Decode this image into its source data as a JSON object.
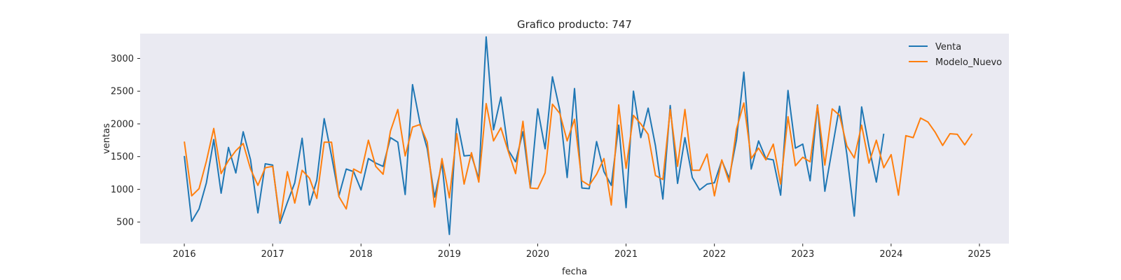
{
  "chart_data": {
    "type": "line",
    "title": "Grafico producto: 747",
    "xlabel": "fecha",
    "ylabel": "ventas",
    "x_ticks": [
      "2016",
      "2017",
      "2018",
      "2019",
      "2020",
      "2021",
      "2022",
      "2023",
      "2024",
      "2025"
    ],
    "y_ticks": [
      500,
      1000,
      1500,
      2000,
      2500,
      3000
    ],
    "x_range": [
      "2015-07",
      "2025-05"
    ],
    "ylim": [
      170,
      3380
    ],
    "grid": false,
    "legend_position": "top-right",
    "background_color": "#eaeaf2",
    "series": [
      {
        "name": "Venta",
        "color": "#1f77b4",
        "start": "2016-01",
        "values": [
          1510,
          510,
          700,
          1100,
          1760,
          940,
          1640,
          1250,
          1880,
          1450,
          640,
          1390,
          1370,
          480,
          800,
          1100,
          1780,
          760,
          1140,
          2080,
          1510,
          900,
          1310,
          1270,
          990,
          1470,
          1400,
          1350,
          1790,
          1720,
          920,
          2600,
          2020,
          1620,
          880,
          1400,
          310,
          2080,
          1510,
          1520,
          1160,
          3330,
          1910,
          2410,
          1600,
          1420,
          1880,
          1020,
          2230,
          1620,
          2720,
          2210,
          1180,
          2540,
          1020,
          1010,
          1730,
          1270,
          1060,
          1980,
          720,
          2500,
          1790,
          2240,
          1660,
          850,
          2280,
          1090,
          1790,
          1180,
          990,
          1080,
          1100,
          1440,
          1170,
          1760,
          2790,
          1310,
          1740,
          1470,
          1450,
          910,
          2510,
          1630,
          1690,
          1130,
          2290,
          970,
          1620,
          2270,
          1530,
          590,
          2260,
          1650,
          1110,
          1850
        ]
      },
      {
        "name": "Modelo_Nuevo",
        "color": "#ff7f0e",
        "start": "2016-01",
        "values": [
          1730,
          900,
          1010,
          1430,
          1930,
          1240,
          1440,
          1590,
          1700,
          1310,
          1060,
          1330,
          1350,
          520,
          1270,
          790,
          1290,
          1170,
          860,
          1720,
          1720,
          890,
          700,
          1310,
          1250,
          1750,
          1350,
          1230,
          1890,
          2220,
          1510,
          1950,
          1990,
          1720,
          730,
          1470,
          870,
          1850,
          1080,
          1560,
          1110,
          2310,
          1740,
          1940,
          1580,
          1240,
          2040,
          1020,
          1010,
          1250,
          2300,
          2160,
          1740,
          2070,
          1130,
          1060,
          1230,
          1470,
          760,
          2290,
          1320,
          2130,
          2000,
          1840,
          1210,
          1150,
          2220,
          1350,
          2220,
          1290,
          1290,
          1540,
          900,
          1450,
          1110,
          1920,
          2320,
          1470,
          1630,
          1450,
          1690,
          1080,
          2110,
          1360,
          1490,
          1420,
          2280,
          1370,
          2230,
          2130,
          1660,
          1480,
          1980,
          1400,
          1750,
          1330,
          1530,
          910,
          1820,
          1790,
          2090,
          2030,
          1870,
          1670,
          1850,
          1840,
          1680,
          1850
        ]
      }
    ]
  }
}
